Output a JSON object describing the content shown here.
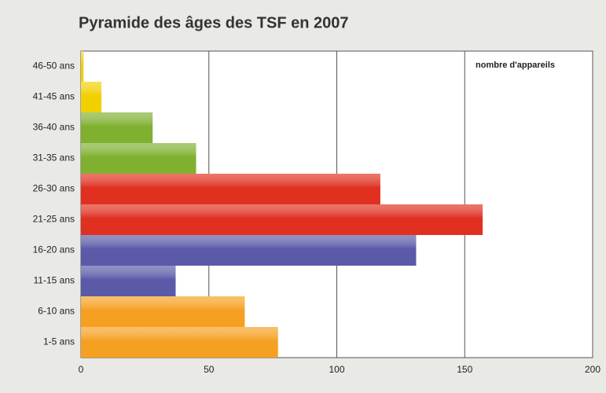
{
  "chart_data": {
    "type": "barh",
    "title": "Pyramide des âges des TSF en 2007",
    "annotation": "nombre d'appareils",
    "categories": [
      "46-50 ans",
      "41-45 ans",
      "36-40 ans",
      "31-35 ans",
      "26-30 ans",
      "21-25 ans",
      "16-20 ans",
      "11-15 ans",
      "6-10 ans",
      "1-5 ans"
    ],
    "values": [
      1,
      8,
      28,
      45,
      117,
      157,
      131,
      37,
      64,
      77
    ],
    "colors": [
      "#f2d000",
      "#f2d000",
      "#7fb030",
      "#7fb030",
      "#e03020",
      "#e03020",
      "#5a5aa8",
      "#5a5aa8",
      "#f5a020",
      "#f5a020"
    ],
    "xlim": [
      0,
      200
    ],
    "xticks": [
      0,
      50,
      100,
      150,
      200
    ],
    "grid": true
  }
}
